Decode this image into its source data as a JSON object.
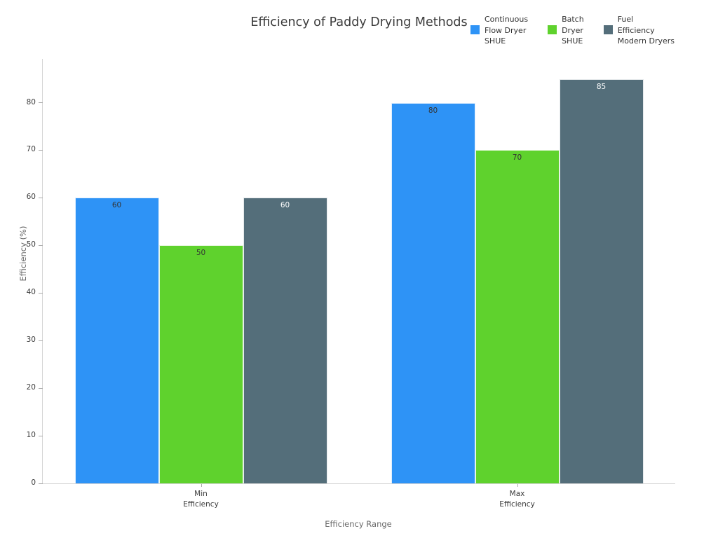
{
  "chart_data": {
    "type": "bar",
    "title": "Efficiency of Paddy Drying Methods",
    "xlabel": "Efficiency Range",
    "ylabel": "Efficiency (%)",
    "categories": [
      "Min\nEfficiency",
      "Max\nEfficiency"
    ],
    "series": [
      {
        "name": "Continuous\nFlow Dryer\nSHUE",
        "color": "#2E93F6",
        "value_label_color": "#333333",
        "values": [
          60,
          80
        ]
      },
      {
        "name": "Batch\nDryer\nSHUE",
        "color": "#5FD22D",
        "value_label_color": "#333333",
        "values": [
          50,
          70
        ]
      },
      {
        "name": "Fuel\nEfficiency\nModern Dryers",
        "color": "#546E7A",
        "value_label_color": "#FFFFFF",
        "values": [
          60,
          85
        ]
      }
    ],
    "yticks": [
      0,
      10,
      20,
      30,
      40,
      50,
      60,
      70,
      80
    ],
    "ylim": [
      0,
      89.2
    ],
    "grid": false,
    "legend_position": "top-right",
    "value_labels": "inside-top"
  }
}
